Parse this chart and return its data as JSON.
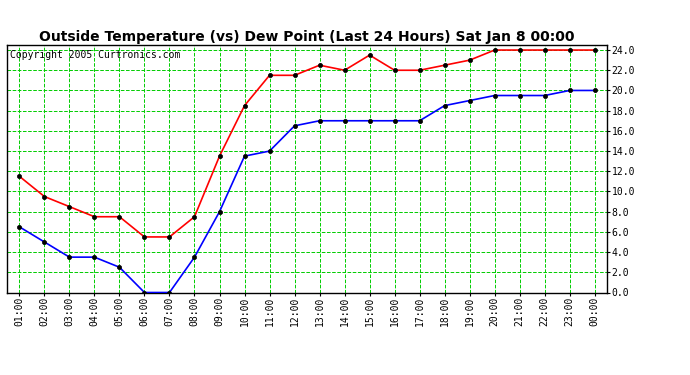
{
  "title": "Outside Temperature (vs) Dew Point (Last 24 Hours) Sat Jan 8 00:00",
  "copyright": "Copyright 2005 Curtronics.com",
  "x_labels": [
    "01:00",
    "02:00",
    "03:00",
    "04:00",
    "05:00",
    "06:00",
    "07:00",
    "08:00",
    "09:00",
    "10:00",
    "11:00",
    "12:00",
    "13:00",
    "14:00",
    "15:00",
    "16:00",
    "17:00",
    "18:00",
    "19:00",
    "20:00",
    "21:00",
    "22:00",
    "23:00",
    "00:00"
  ],
  "temp_values": [
    11.5,
    9.5,
    8.5,
    7.5,
    7.5,
    5.5,
    5.5,
    7.5,
    13.5,
    18.5,
    21.5,
    21.5,
    22.5,
    22.0,
    23.5,
    22.0,
    22.0,
    22.5,
    23.0,
    24.0,
    24.0,
    24.0,
    24.0,
    24.0
  ],
  "dew_values": [
    6.5,
    5.0,
    3.5,
    3.5,
    2.5,
    0.0,
    0.0,
    3.5,
    8.0,
    13.5,
    14.0,
    16.5,
    17.0,
    17.0,
    17.0,
    17.0,
    17.0,
    18.5,
    19.0,
    19.5,
    19.5,
    19.5,
    20.0,
    20.0
  ],
  "temp_color": "#ff0000",
  "dew_color": "#0000ff",
  "bg_color": "#ffffff",
  "grid_color": "#00cc00",
  "plot_bg": "#ffffff",
  "ylim": [
    0,
    24.5
  ],
  "ytick_min": 0,
  "ytick_max": 24,
  "ytick_step": 2.0,
  "title_fontsize": 10,
  "copyright_fontsize": 7,
  "tick_fontsize": 7,
  "line_width": 1.2,
  "marker": "o",
  "marker_size": 3,
  "marker_color": "#000000"
}
